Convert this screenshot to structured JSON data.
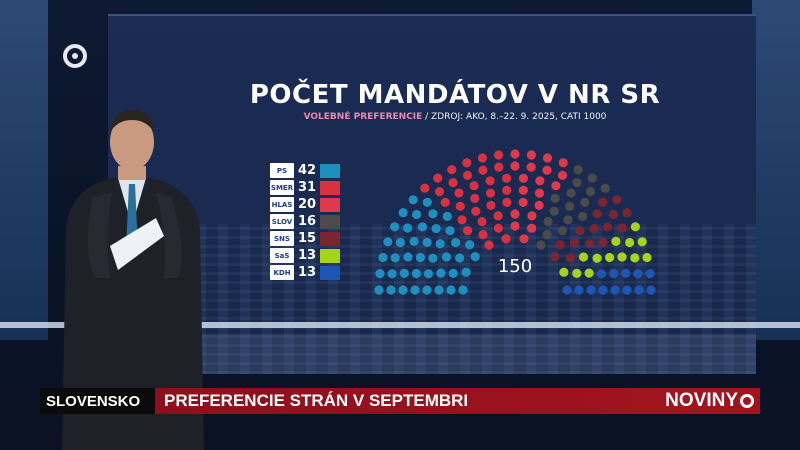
{
  "graphic": {
    "title": "POČET MANDÁTOV V NR SR",
    "subtitle_highlight": "VOLEBNÉ PREFERENCIE",
    "subtitle_rest": " / ZDROJ: AKO, 8.–22. 9. 2025, CATI 1000",
    "total_label": "150"
  },
  "parties": [
    {
      "logo": "PS",
      "seats": "42",
      "color": "#1f8fbf"
    },
    {
      "logo": "SMER",
      "seats": "31",
      "color": "#d8313f"
    },
    {
      "logo": "HLAS",
      "seats": "20",
      "color": "#e2384c"
    },
    {
      "logo": "SLOV",
      "seats": "16",
      "color": "#4b4b4b"
    },
    {
      "logo": "SNS",
      "seats": "15",
      "color": "#7a2630"
    },
    {
      "logo": "SaS",
      "seats": "13",
      "color": "#a5d51a"
    },
    {
      "logo": "KDH",
      "seats": "13",
      "color": "#1c57b5"
    }
  ],
  "chart_data": {
    "type": "pie",
    "title": "POČET MANDÁTOV V NR SR",
    "total": 150,
    "categories": [
      "PS",
      "SMER",
      "HLAS",
      "SLOVENSKO",
      "SNS",
      "SaS",
      "KDH"
    ],
    "values": [
      42,
      31,
      20,
      16,
      15,
      13,
      13
    ]
  },
  "ticker": {
    "region": "SLOVENSKO",
    "headline": "PREFERENCIE STRÁN V SEPTEMBRI",
    "brand": "NOVINY"
  }
}
